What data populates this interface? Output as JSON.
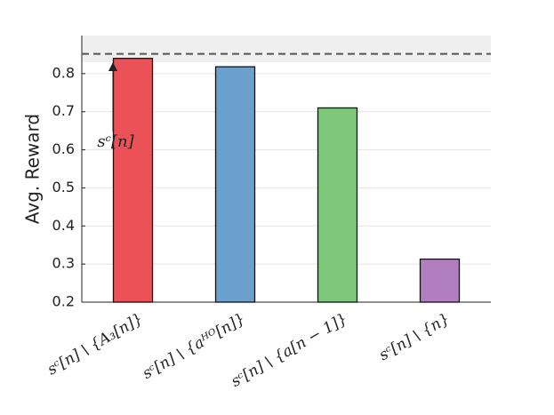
{
  "chart_data": {
    "type": "bar",
    "y_label": "Avg. Reward",
    "categories": [
      "sᶜ[n] \\ {A₃[n]}",
      "sᶜ[n] \\ {aᴴᴼ[n]}",
      "sᶜ[n] \\ {a[n − 1]}",
      "sᶜ[n] \\ {n}"
    ],
    "values": [
      0.84,
      0.818,
      0.71,
      0.313
    ],
    "colors": [
      "#ea5258",
      "#6b9fcc",
      "#7dc67a",
      "#b17ec0"
    ],
    "reference_line": 0.852,
    "reference_band": [
      0.83,
      0.9
    ],
    "annotation": "sᶜ[n]",
    "ylim": [
      0.2,
      0.9
    ],
    "yticks": [
      0.2,
      0.3,
      0.4,
      0.5,
      0.6,
      0.7,
      0.8
    ],
    "grid": true
  }
}
